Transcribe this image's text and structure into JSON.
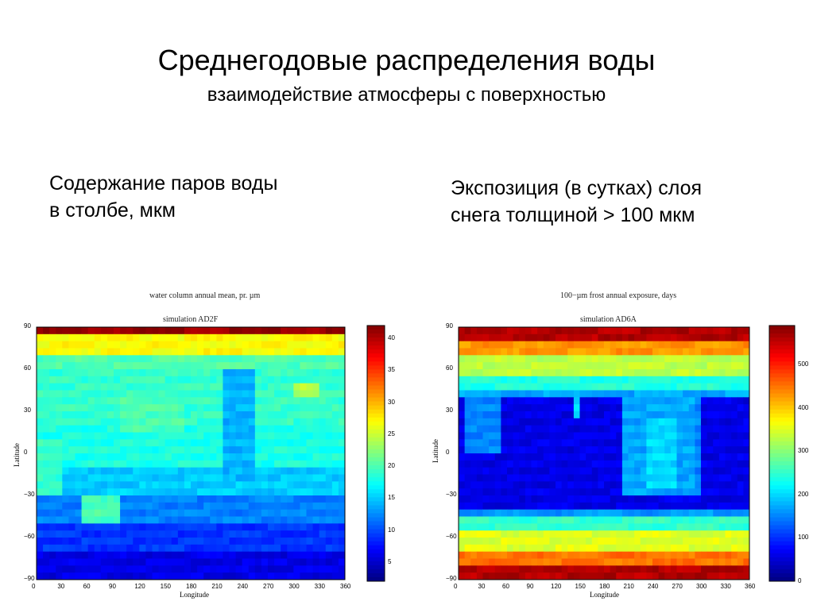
{
  "slide": {
    "title": "Среднегодовые распределения воды",
    "subtitle": "взаимодействие атмосферы с поверхностью",
    "caption_left_line1": "Содержание паров воды",
    "caption_left_line2": "в столбе, мкм",
    "caption_right_line1": "Экспозиция (в сутках) слоя",
    "caption_right_line2": "снега толщиной > 100 мкм"
  },
  "chart_data": [
    {
      "type": "heatmap",
      "title": "water column annual mean, pr. µm",
      "subtitle": "simulation AD2F",
      "xlabel": "Longitude",
      "ylabel": "Latitude",
      "xlim": [
        0,
        360
      ],
      "ylim": [
        -90,
        90
      ],
      "xticks": [
        "0",
        "30",
        "60",
        "90",
        "120",
        "150",
        "180",
        "210",
        "240",
        "270",
        "300",
        "330",
        "360"
      ],
      "yticks": [
        "90",
        "60",
        "30",
        "0",
        "−30",
        "−60",
        "−90"
      ],
      "colorbar": {
        "min": 2,
        "max": 42,
        "ticks": [
          "40",
          "35",
          "30",
          "25",
          "20",
          "15",
          "10",
          "5"
        ],
        "tick_values": [
          40,
          35,
          30,
          25,
          20,
          15,
          10,
          5
        ]
      },
      "colormap": "jet",
      "bands": [
        {
          "lat": [
            83,
            90
          ],
          "value": 41
        },
        {
          "lat": [
            72,
            83
          ],
          "value": 27
        },
        {
          "lat": [
            60,
            72
          ],
          "value": 20
        },
        {
          "lat": [
            20,
            60
          ],
          "value": 19
        },
        {
          "lat": [
            -10,
            20
          ],
          "value": 18
        },
        {
          "lat": [
            -30,
            -10
          ],
          "value": 15
        },
        {
          "lat": [
            -50,
            -30
          ],
          "value": 12
        },
        {
          "lat": [
            -70,
            -50
          ],
          "value": 9
        },
        {
          "lat": [
            -90,
            -70
          ],
          "value": 6
        }
      ],
      "features": [
        {
          "lon": [
            100,
            175
          ],
          "lat": [
            15,
            40
          ],
          "value": 20
        },
        {
          "lon": [
            215,
            255
          ],
          "lat": [
            -20,
            60
          ],
          "value": 14
        },
        {
          "lon": [
            55,
            95
          ],
          "lat": [
            -50,
            -28
          ],
          "value": 20
        },
        {
          "lon": [
            300,
            330
          ],
          "lat": [
            38,
            50
          ],
          "value": 24
        },
        {
          "lon": [
            0,
            30
          ],
          "lat": [
            -30,
            10
          ],
          "value": 19
        }
      ]
    },
    {
      "type": "heatmap",
      "title": "100−µm frost annual exposure, days",
      "subtitle": "simulation AD6A",
      "xlabel": "Longitude",
      "ylabel": "Latitude",
      "xlim": [
        0,
        360
      ],
      "ylim": [
        -90,
        90
      ],
      "xticks": [
        "0",
        "30",
        "60",
        "90",
        "120",
        "150",
        "180",
        "210",
        "240",
        "270",
        "300",
        "330",
        "360"
      ],
      "yticks": [
        "90",
        "60",
        "30",
        "0",
        "−30",
        "−60",
        "−90"
      ],
      "colorbar": {
        "min": 0,
        "max": 590,
        "ticks": [
          "500",
          "400",
          "300",
          "200",
          "100",
          "0"
        ],
        "tick_values": [
          500,
          400,
          300,
          200,
          100,
          0
        ]
      },
      "colormap": "jet",
      "bands": [
        {
          "lat": [
            80,
            90
          ],
          "value": 560
        },
        {
          "lat": [
            68,
            80
          ],
          "value": 430
        },
        {
          "lat": [
            55,
            68
          ],
          "value": 330
        },
        {
          "lat": [
            45,
            55
          ],
          "value": 240
        },
        {
          "lat": [
            38,
            45
          ],
          "value": 170
        },
        {
          "lat": [
            -40,
            38
          ],
          "value": 60
        },
        {
          "lat": [
            -47,
            -40
          ],
          "value": 160
        },
        {
          "lat": [
            -56,
            -47
          ],
          "value": 250
        },
        {
          "lat": [
            -68,
            -56
          ],
          "value": 350
        },
        {
          "lat": [
            -80,
            -68
          ],
          "value": 450
        },
        {
          "lat": [
            -90,
            -80
          ],
          "value": 560
        }
      ],
      "features": [
        {
          "lon": [
            10,
            55
          ],
          "lat": [
            0,
            38
          ],
          "value": 150
        },
        {
          "lon": [
            200,
            290
          ],
          "lat": [
            -30,
            38
          ],
          "value": 170
        },
        {
          "lon": [
            230,
            270
          ],
          "lat": [
            -25,
            25
          ],
          "value": 200
        },
        {
          "lon": [
            290,
            300
          ],
          "lat": [
            -30,
            38
          ],
          "value": 150
        },
        {
          "lon": [
            140,
            150
          ],
          "lat": [
            25,
            38
          ],
          "value": 200
        }
      ]
    }
  ]
}
